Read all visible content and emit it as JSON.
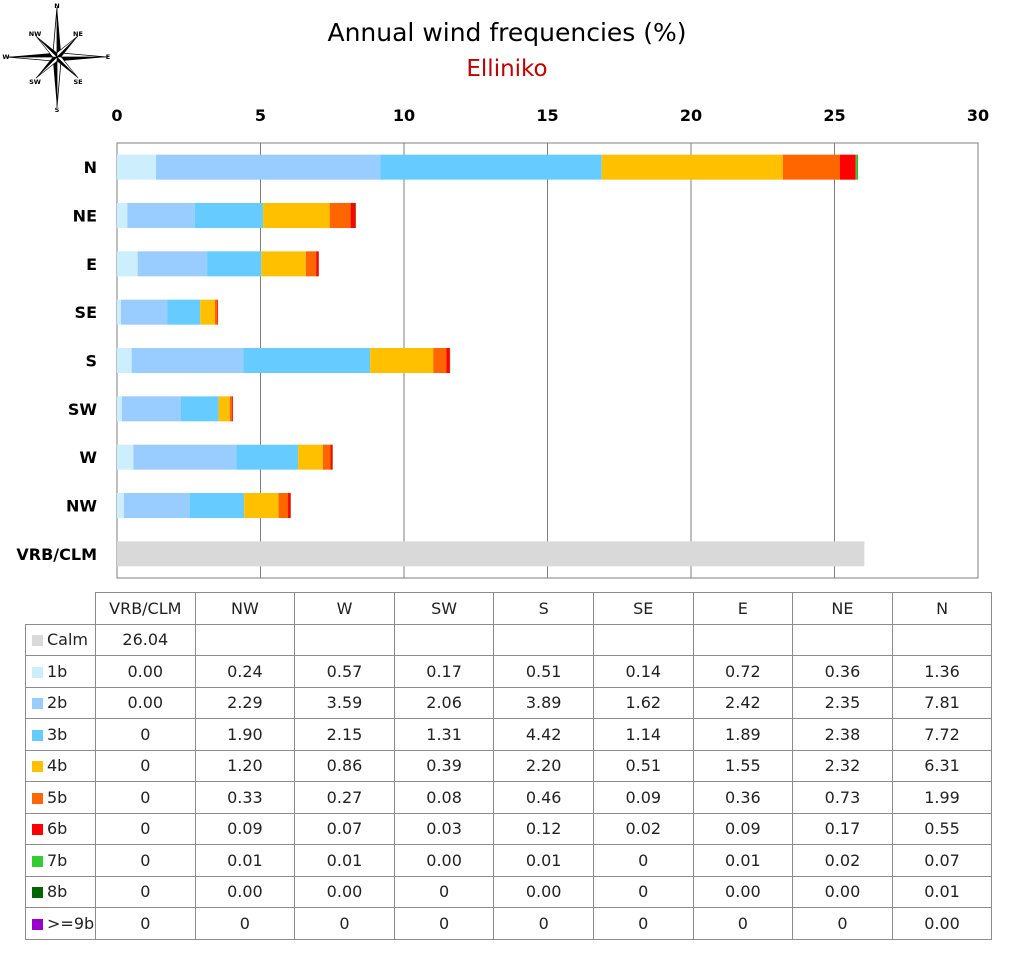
{
  "title": "Annual wind frequencies (%)",
  "subtitle": "Elliniko",
  "compass_labels": [
    "N",
    "NE",
    "E",
    "SE",
    "S",
    "SW",
    "W",
    "NW"
  ],
  "chart_data": {
    "type": "bar",
    "orientation": "horizontal",
    "stacked": true,
    "title": "Annual wind frequencies (%)",
    "subtitle": "Elliniko",
    "xlim": [
      0,
      30
    ],
    "xticks": [
      0,
      5,
      10,
      15,
      20,
      25,
      30
    ],
    "grid": true,
    "categories": [
      "N",
      "NE",
      "E",
      "SE",
      "S",
      "SW",
      "W",
      "NW",
      "VRB/CLM"
    ],
    "series": [
      {
        "name": "Calm",
        "color": "#d9d9d9",
        "values": [
          0,
          0,
          0,
          0,
          0,
          0,
          0,
          0,
          26.04
        ]
      },
      {
        "name": "1b",
        "color": "#cdeefc",
        "values": [
          1.36,
          0.36,
          0.72,
          0.14,
          0.51,
          0.17,
          0.57,
          0.24,
          0.0
        ]
      },
      {
        "name": "2b",
        "color": "#99ccff",
        "values": [
          7.81,
          2.35,
          2.42,
          1.62,
          3.89,
          2.06,
          3.59,
          2.29,
          0.0
        ]
      },
      {
        "name": "3b",
        "color": "#66ccff",
        "values": [
          7.72,
          2.38,
          1.89,
          1.14,
          4.42,
          1.31,
          2.15,
          1.9,
          0
        ]
      },
      {
        "name": "4b",
        "color": "#ffc000",
        "values": [
          6.31,
          2.32,
          1.55,
          0.51,
          2.2,
          0.39,
          0.86,
          1.2,
          0
        ]
      },
      {
        "name": "5b",
        "color": "#ff6600",
        "values": [
          1.99,
          0.73,
          0.36,
          0.09,
          0.46,
          0.08,
          0.27,
          0.33,
          0
        ]
      },
      {
        "name": "6b",
        "color": "#ff0000",
        "values": [
          0.55,
          0.17,
          0.09,
          0.02,
          0.12,
          0.03,
          0.07,
          0.09,
          0
        ]
      },
      {
        "name": "7b",
        "color": "#33cc33",
        "values": [
          0.07,
          0.02,
          0.01,
          0,
          0.01,
          0.0,
          0.01,
          0.01,
          0
        ]
      },
      {
        "name": "8b",
        "color": "#006600",
        "values": [
          0.01,
          0.0,
          0.0,
          0,
          0.0,
          0,
          0.0,
          0.0,
          0
        ]
      },
      {
        "name": ">=9b",
        "color": "#9900cc",
        "values": [
          0.0,
          0,
          0,
          0,
          0,
          0,
          0,
          0,
          0
        ]
      }
    ]
  },
  "table": {
    "columns": [
      "VRB/CLM",
      "NW",
      "W",
      "SW",
      "S",
      "SE",
      "E",
      "NE",
      "N"
    ],
    "rows": [
      {
        "label": "Calm",
        "color": "#d9d9d9",
        "cells": [
          "26.04",
          "",
          "",
          "",
          "",
          "",
          "",
          "",
          ""
        ]
      },
      {
        "label": "1b",
        "color": "#cdeefc",
        "cells": [
          "0.00",
          "0.24",
          "0.57",
          "0.17",
          "0.51",
          "0.14",
          "0.72",
          "0.36",
          "1.36"
        ]
      },
      {
        "label": "2b",
        "color": "#99ccff",
        "cells": [
          "0.00",
          "2.29",
          "3.59",
          "2.06",
          "3.89",
          "1.62",
          "2.42",
          "2.35",
          "7.81"
        ]
      },
      {
        "label": "3b",
        "color": "#66ccff",
        "cells": [
          "0",
          "1.90",
          "2.15",
          "1.31",
          "4.42",
          "1.14",
          "1.89",
          "2.38",
          "7.72"
        ]
      },
      {
        "label": "4b",
        "color": "#ffc000",
        "cells": [
          "0",
          "1.20",
          "0.86",
          "0.39",
          "2.20",
          "0.51",
          "1.55",
          "2.32",
          "6.31"
        ]
      },
      {
        "label": "5b",
        "color": "#ff6600",
        "cells": [
          "0",
          "0.33",
          "0.27",
          "0.08",
          "0.46",
          "0.09",
          "0.36",
          "0.73",
          "1.99"
        ]
      },
      {
        "label": "6b",
        "color": "#ff0000",
        "cells": [
          "0",
          "0.09",
          "0.07",
          "0.03",
          "0.12",
          "0.02",
          "0.09",
          "0.17",
          "0.55"
        ]
      },
      {
        "label": "7b",
        "color": "#33cc33",
        "cells": [
          "0",
          "0.01",
          "0.01",
          "0.00",
          "0.01",
          "0",
          "0.01",
          "0.02",
          "0.07"
        ]
      },
      {
        "label": "8b",
        "color": "#006600",
        "cells": [
          "0",
          "0.00",
          "0.00",
          "0",
          "0.00",
          "0",
          "0.00",
          "0.00",
          "0.01"
        ]
      },
      {
        "label": ">=9b",
        "color": "#9900cc",
        "cells": [
          "0",
          "0",
          "0",
          "0",
          "0",
          "0",
          "0",
          "0",
          "0.00"
        ]
      }
    ]
  }
}
